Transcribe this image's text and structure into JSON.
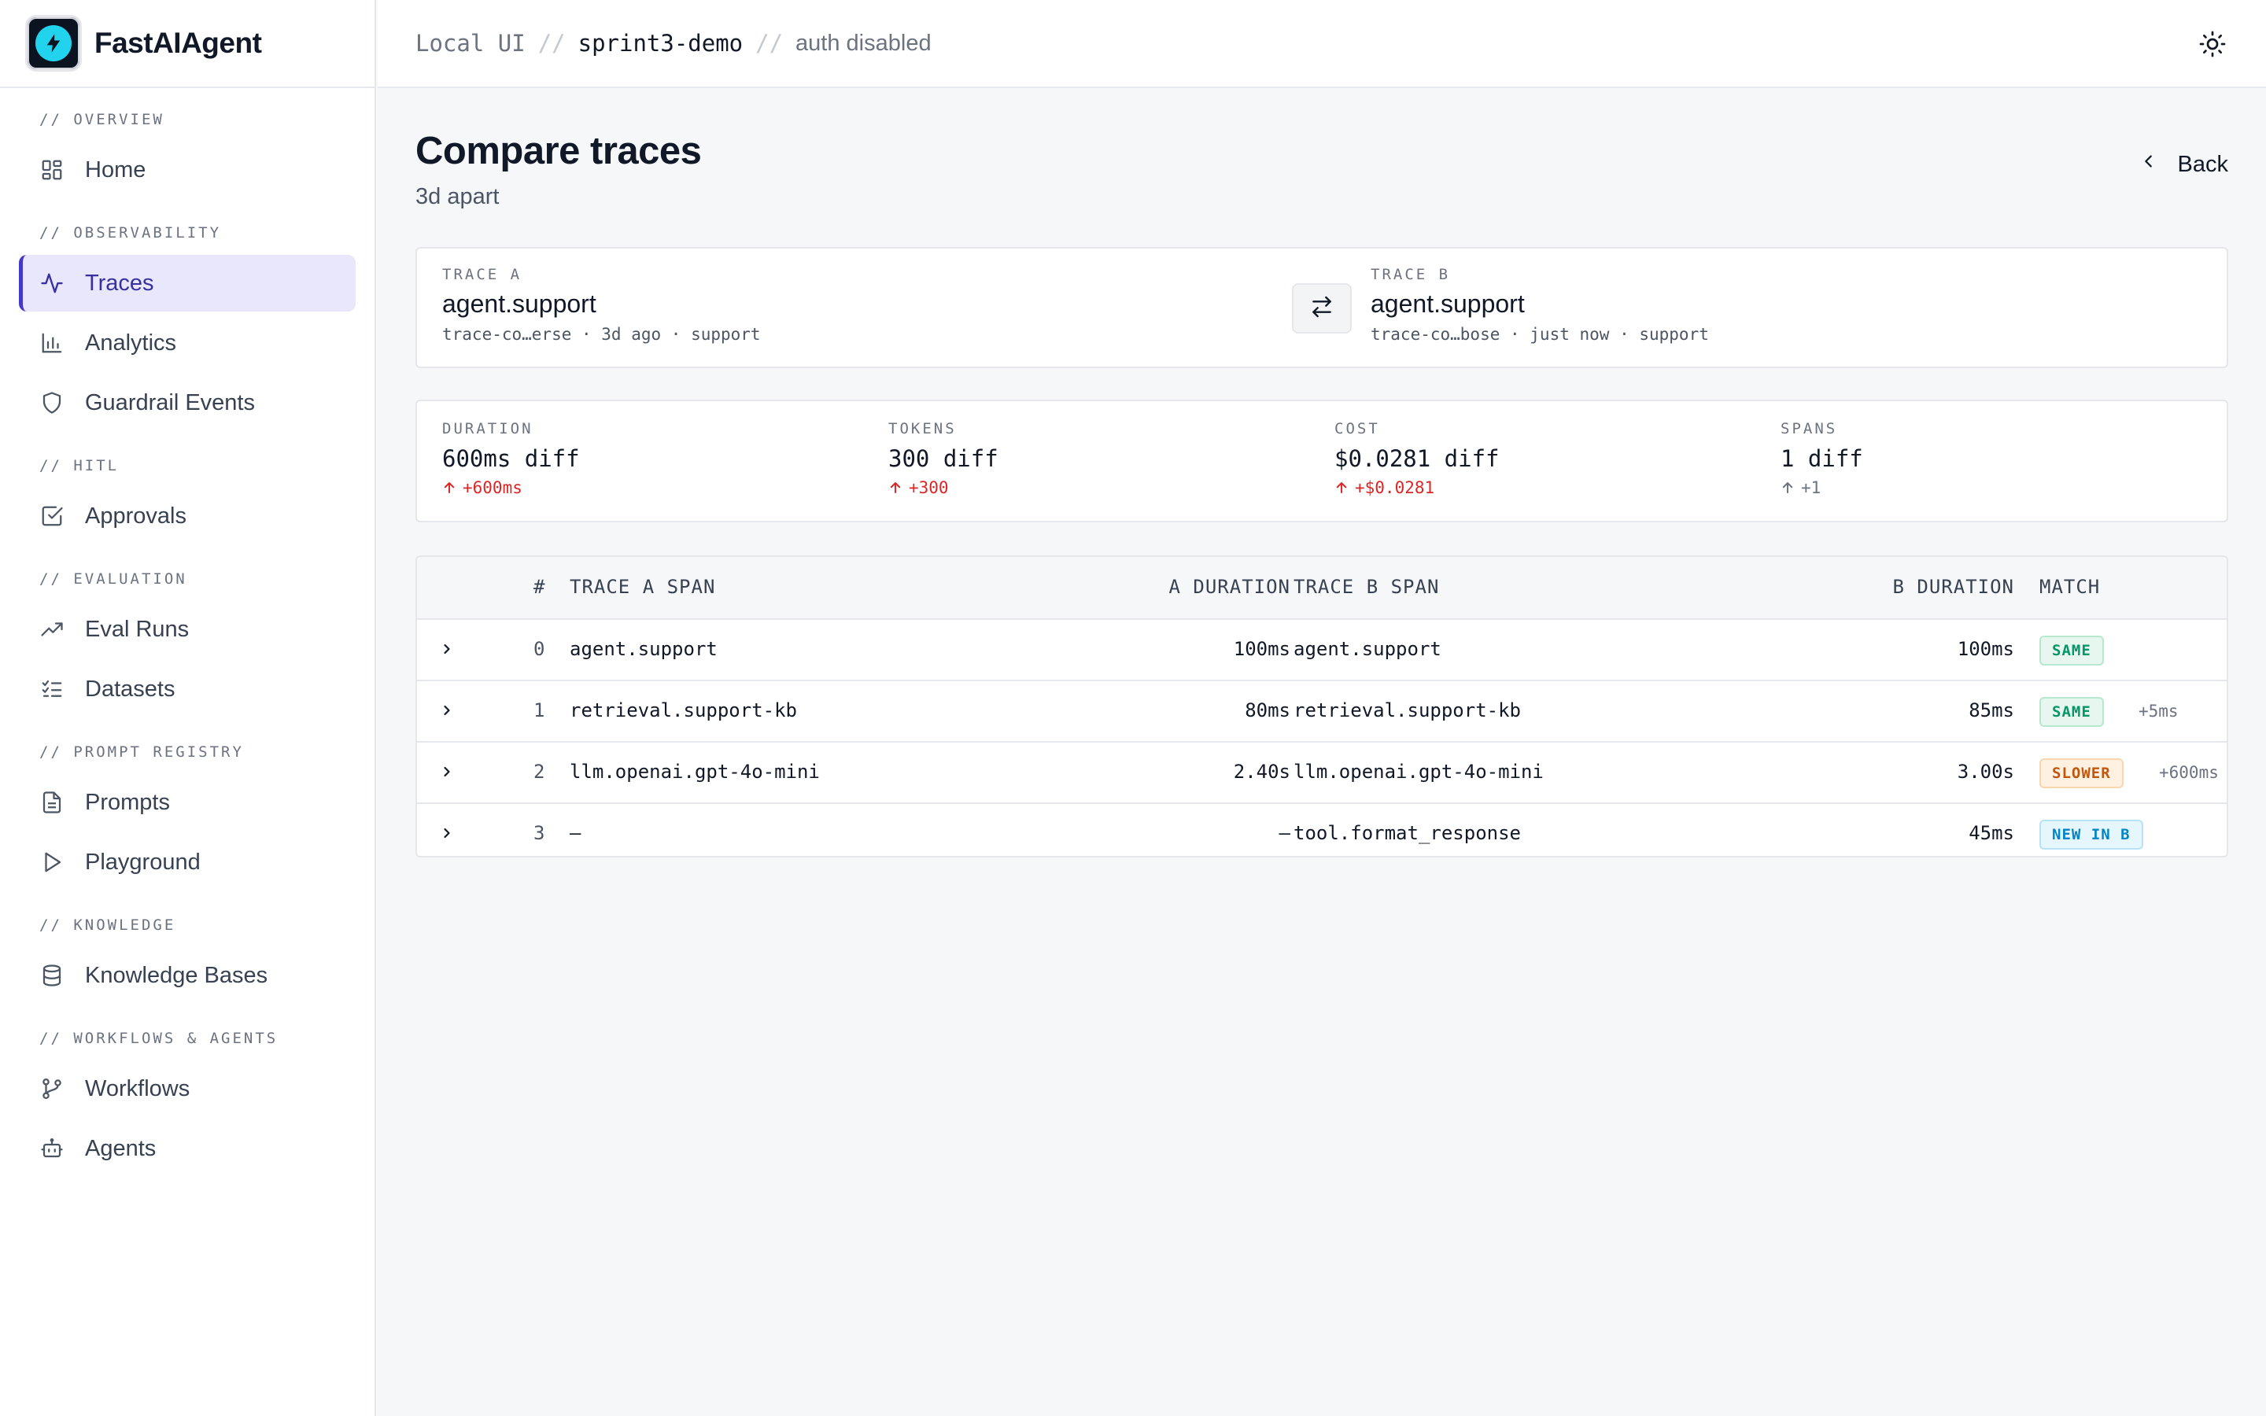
{
  "app": {
    "name": "FastAIAgent"
  },
  "topbar": {
    "crumbs": [
      "Local UI",
      "sprint3-demo",
      "auth disabled"
    ],
    "separator": "//"
  },
  "sidebar": {
    "sections": [
      {
        "label": "// OVERVIEW",
        "items": [
          {
            "label": "Home",
            "icon": "grid-icon"
          }
        ]
      },
      {
        "label": "// OBSERVABILITY",
        "items": [
          {
            "label": "Traces",
            "icon": "activity-icon",
            "active": true
          },
          {
            "label": "Analytics",
            "icon": "bar-chart-icon"
          },
          {
            "label": "Guardrail Events",
            "icon": "shield-icon"
          }
        ]
      },
      {
        "label": "// HITL",
        "items": [
          {
            "label": "Approvals",
            "icon": "check-square-icon"
          }
        ]
      },
      {
        "label": "// EVALUATION",
        "items": [
          {
            "label": "Eval Runs",
            "icon": "trending-up-icon"
          },
          {
            "label": "Datasets",
            "icon": "list-checks-icon"
          }
        ]
      },
      {
        "label": "// PROMPT REGISTRY",
        "items": [
          {
            "label": "Prompts",
            "icon": "file-text-icon"
          },
          {
            "label": "Playground",
            "icon": "play-icon"
          }
        ]
      },
      {
        "label": "// KNOWLEDGE",
        "items": [
          {
            "label": "Knowledge Bases",
            "icon": "database-icon"
          }
        ]
      },
      {
        "label": "// WORKFLOWS & AGENTS",
        "items": [
          {
            "label": "Workflows",
            "icon": "git-branch-icon"
          },
          {
            "label": "Agents",
            "icon": "bot-icon"
          }
        ]
      }
    ]
  },
  "page": {
    "title": "Compare traces",
    "subtitle": "3d apart",
    "back_label": "Back"
  },
  "traces": {
    "a": {
      "label": "TRACE A",
      "name": "agent.support",
      "meta": "trace-co…erse · 3d ago · support"
    },
    "b": {
      "label": "TRACE B",
      "name": "agent.support",
      "meta": "trace-co…bose · just now · support"
    }
  },
  "stats": [
    {
      "label": "DURATION",
      "value": "600ms diff",
      "delta": "+600ms",
      "tone": "red"
    },
    {
      "label": "TOKENS",
      "value": "300 diff",
      "delta": "+300",
      "tone": "red"
    },
    {
      "label": "COST",
      "value": "$0.0281 diff",
      "delta": "+$0.0281",
      "tone": "red"
    },
    {
      "label": "SPANS",
      "value": "1 diff",
      "delta": "+1",
      "tone": "gray"
    }
  ],
  "table": {
    "headers": {
      "index": "#",
      "a_span": "TRACE A SPAN",
      "a_duration": "A DURATION",
      "b_span": "TRACE B SPAN",
      "b_duration": "B DURATION",
      "match": "MATCH"
    },
    "rows": [
      {
        "index": "0",
        "a_span": "agent.support",
        "a_duration": "100ms",
        "b_span": "agent.support",
        "b_duration": "100ms",
        "match": "SAME",
        "match_type": "same",
        "note": ""
      },
      {
        "index": "1",
        "a_span": "retrieval.support-kb",
        "a_duration": "80ms",
        "b_span": "retrieval.support-kb",
        "b_duration": "85ms",
        "match": "SAME",
        "match_type": "same",
        "note": "+5ms"
      },
      {
        "index": "2",
        "a_span": "llm.openai.gpt-4o-mini",
        "a_duration": "2.40s",
        "b_span": "llm.openai.gpt-4o-mini",
        "b_duration": "3.00s",
        "match": "SLOWER",
        "match_type": "slower",
        "note": "+600ms"
      },
      {
        "index": "3",
        "a_span": "—",
        "a_duration": "—",
        "b_span": "tool.format_response",
        "b_duration": "45ms",
        "match": "NEW IN B",
        "match_type": "new",
        "note": ""
      }
    ]
  },
  "colors": {
    "accent": "#4338ca",
    "active_bg": "#e8e7fb",
    "increase": "#dc2626"
  }
}
